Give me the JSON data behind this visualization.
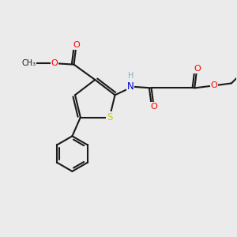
{
  "bg_color": "#ebebeb",
  "bond_color": "#1a1a1a",
  "bond_width": 1.5,
  "atom_colors": {
    "O": "#ff0000",
    "N": "#0000cc",
    "S": "#cccc00",
    "H": "#7ab8b8",
    "C": "#1a1a1a"
  },
  "font_size": 8.0,
  "figsize": [
    3.0,
    3.0
  ],
  "dpi": 100
}
